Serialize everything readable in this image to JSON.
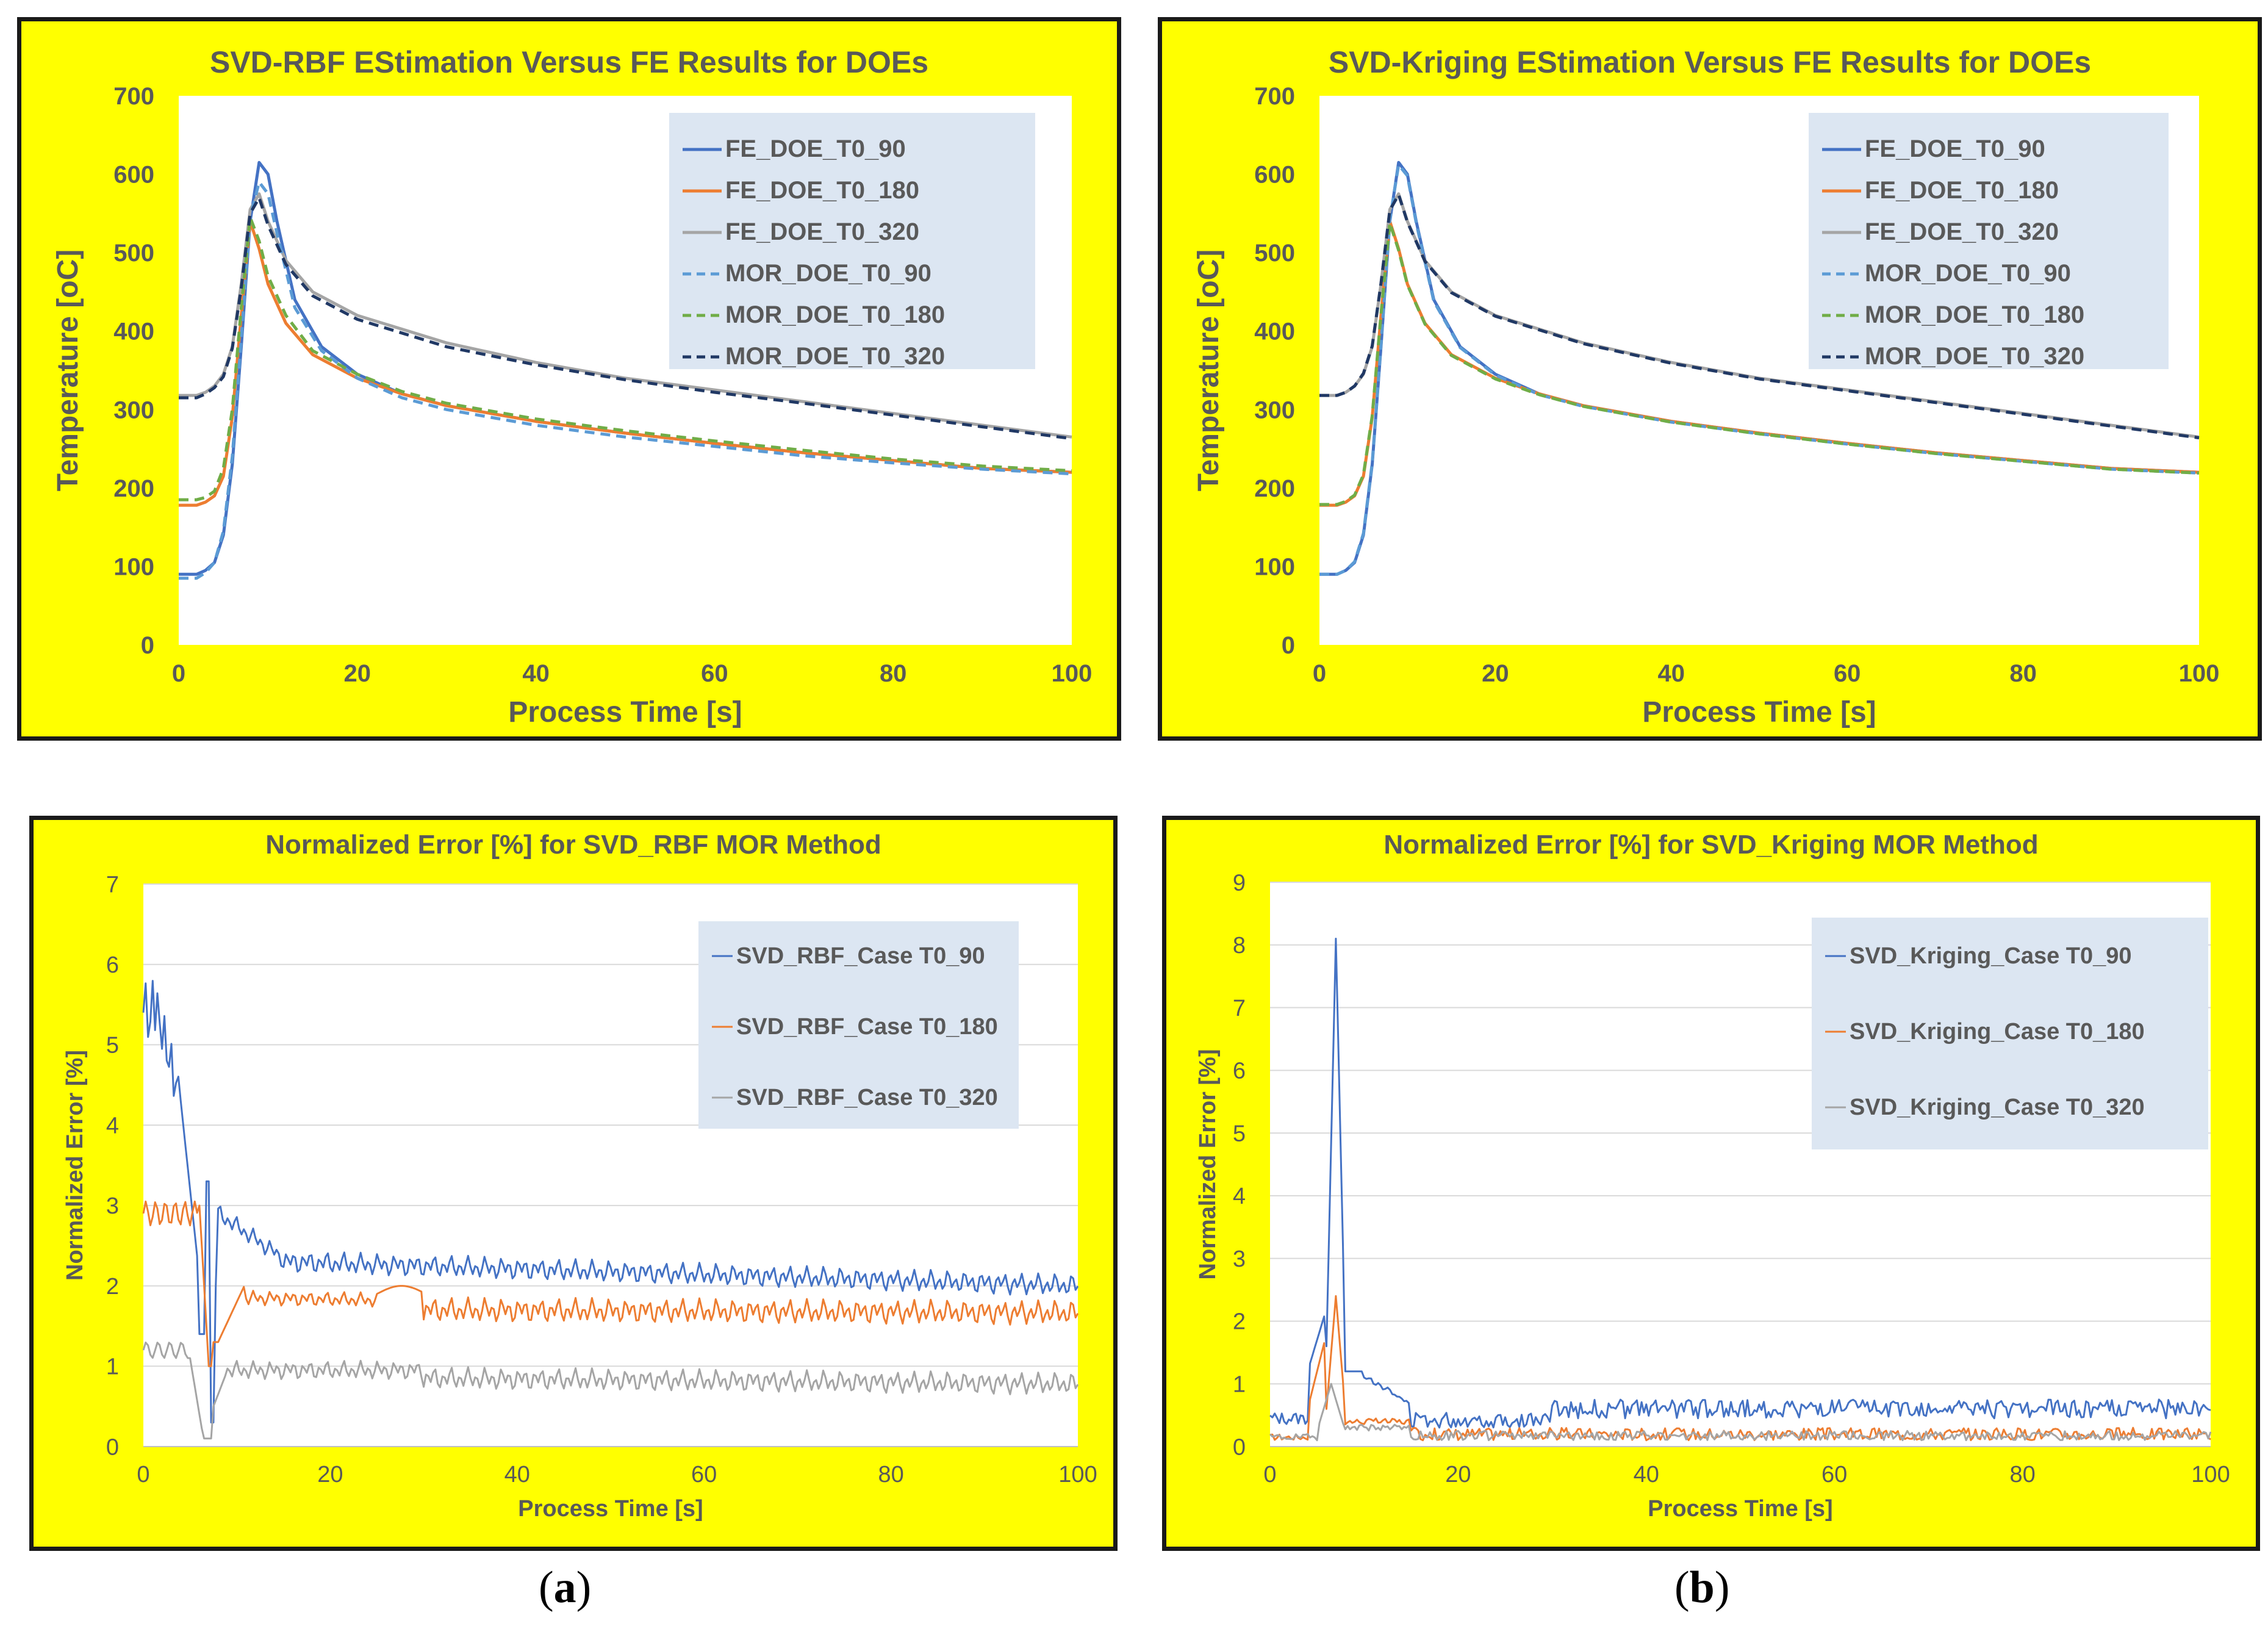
{
  "captions": {
    "a": "a",
    "b": "b"
  },
  "chart_data": [
    {
      "id": "tl",
      "type": "line",
      "title": "SVD-RBF EStimation Versus FE Results for DOEs",
      "xlabel": "Process Time [s]",
      "ylabel": "Temperature [oC]",
      "xlim": [
        0,
        100
      ],
      "ylim": [
        0,
        700
      ],
      "xticks": [
        0,
        20,
        40,
        60,
        80,
        100
      ],
      "yticks": [
        0,
        100,
        200,
        300,
        400,
        500,
        600,
        700
      ],
      "grid": false,
      "legend_position": "top-right",
      "series": [
        {
          "name": "FE_DOE_T0_90",
          "color": "#4472c4",
          "style": "solid",
          "x": [
            0,
            2,
            3,
            4,
            5,
            6,
            7,
            8,
            9,
            10,
            11,
            13,
            16,
            20,
            25,
            30,
            40,
            50,
            60,
            70,
            80,
            90,
            100
          ],
          "y": [
            90,
            90,
            95,
            105,
            140,
            230,
            380,
            540,
            615,
            600,
            540,
            440,
            380,
            345,
            320,
            305,
            285,
            270,
            257,
            245,
            235,
            225,
            220
          ]
        },
        {
          "name": "FE_DOE_T0_180",
          "color": "#ed7d31",
          "style": "solid",
          "x": [
            0,
            2,
            3,
            4,
            5,
            6,
            7,
            8,
            9,
            10,
            12,
            15,
            20,
            25,
            30,
            40,
            50,
            60,
            70,
            80,
            90,
            100
          ],
          "y": [
            178,
            178,
            182,
            190,
            215,
            290,
            420,
            540,
            505,
            460,
            410,
            370,
            340,
            320,
            305,
            285,
            270,
            257,
            245,
            235,
            225,
            220
          ]
        },
        {
          "name": "FE_DOE_T0_320",
          "color": "#a5a5a5",
          "style": "solid",
          "x": [
            0,
            2,
            3,
            4,
            5,
            6,
            7,
            8,
            9,
            10,
            12,
            15,
            20,
            30,
            40,
            50,
            60,
            70,
            80,
            90,
            100
          ],
          "y": [
            318,
            318,
            322,
            330,
            345,
            380,
            460,
            555,
            575,
            540,
            490,
            450,
            420,
            385,
            360,
            340,
            325,
            310,
            295,
            280,
            265
          ]
        },
        {
          "name": "MOR_DOE_T0_90",
          "color": "#5b9bd5",
          "style": "dash",
          "x": [
            0,
            2,
            3,
            4,
            5,
            6,
            7,
            8,
            9,
            10,
            11,
            13,
            16,
            20,
            25,
            30,
            40,
            50,
            60,
            70,
            80,
            90,
            100
          ],
          "y": [
            85,
            85,
            92,
            105,
            145,
            240,
            390,
            545,
            590,
            575,
            525,
            430,
            375,
            340,
            315,
            300,
            280,
            265,
            253,
            241,
            232,
            224,
            218
          ]
        },
        {
          "name": "MOR_DOE_T0_180",
          "color": "#70ad47",
          "style": "dash",
          "x": [
            0,
            2,
            3,
            4,
            5,
            6,
            7,
            8,
            9,
            10,
            12,
            15,
            20,
            25,
            30,
            40,
            50,
            60,
            70,
            80,
            90,
            100
          ],
          "y": [
            185,
            185,
            188,
            196,
            225,
            300,
            430,
            545,
            515,
            470,
            420,
            375,
            345,
            323,
            308,
            288,
            273,
            260,
            248,
            237,
            228,
            222
          ]
        },
        {
          "name": "MOR_DOE_T0_320",
          "color": "#203864",
          "style": "dash",
          "x": [
            0,
            2,
            3,
            4,
            5,
            6,
            7,
            8,
            9,
            10,
            12,
            15,
            20,
            30,
            40,
            50,
            60,
            70,
            80,
            90,
            100
          ],
          "y": [
            315,
            315,
            320,
            328,
            342,
            378,
            455,
            550,
            570,
            535,
            485,
            445,
            415,
            380,
            357,
            338,
            322,
            308,
            293,
            278,
            263
          ]
        }
      ]
    },
    {
      "id": "tr",
      "type": "line",
      "title": "SVD-Kriging EStimation Versus FE Results for DOEs",
      "xlabel": "Process Time [s]",
      "ylabel": "Temperature [oC]",
      "xlim": [
        0,
        100
      ],
      "ylim": [
        0,
        700
      ],
      "xticks": [
        0,
        20,
        40,
        60,
        80,
        100
      ],
      "yticks": [
        0,
        100,
        200,
        300,
        400,
        500,
        600,
        700
      ],
      "grid": false,
      "legend_position": "top-right",
      "series": [
        {
          "name": "FE_DOE_T0_90",
          "color": "#4472c4",
          "style": "solid",
          "x": [
            0,
            2,
            3,
            4,
            5,
            6,
            7,
            8,
            9,
            10,
            11,
            13,
            16,
            20,
            25,
            30,
            40,
            50,
            60,
            70,
            80,
            90,
            100
          ],
          "y": [
            90,
            90,
            95,
            105,
            140,
            230,
            380,
            540,
            615,
            600,
            540,
            440,
            380,
            345,
            320,
            305,
            285,
            270,
            257,
            245,
            235,
            225,
            220
          ]
        },
        {
          "name": "FE_DOE_T0_180",
          "color": "#ed7d31",
          "style": "solid",
          "x": [
            0,
            2,
            3,
            4,
            5,
            6,
            7,
            8,
            9,
            10,
            12,
            15,
            20,
            25,
            30,
            40,
            50,
            60,
            70,
            80,
            90,
            100
          ],
          "y": [
            178,
            178,
            182,
            190,
            215,
            290,
            420,
            540,
            505,
            460,
            410,
            370,
            340,
            320,
            305,
            285,
            270,
            257,
            245,
            235,
            225,
            220
          ]
        },
        {
          "name": "FE_DOE_T0_320",
          "color": "#a5a5a5",
          "style": "solid",
          "x": [
            0,
            2,
            3,
            4,
            5,
            6,
            7,
            8,
            9,
            10,
            12,
            15,
            20,
            30,
            40,
            50,
            60,
            70,
            80,
            90,
            100
          ],
          "y": [
            318,
            318,
            322,
            330,
            345,
            380,
            460,
            555,
            575,
            540,
            490,
            450,
            420,
            385,
            360,
            340,
            325,
            310,
            295,
            280,
            265
          ]
        },
        {
          "name": "MOR_DOE_T0_90",
          "color": "#5b9bd5",
          "style": "dash",
          "x": [
            0,
            2,
            3,
            4,
            5,
            6,
            7,
            8,
            9,
            10,
            11,
            13,
            16,
            20,
            25,
            30,
            40,
            50,
            60,
            70,
            80,
            90,
            100
          ],
          "y": [
            90,
            90,
            95,
            106,
            142,
            232,
            382,
            542,
            612,
            598,
            538,
            438,
            379,
            344,
            319,
            304,
            284,
            269,
            256,
            244,
            234,
            224,
            219
          ]
        },
        {
          "name": "MOR_DOE_T0_180",
          "color": "#70ad47",
          "style": "dash",
          "x": [
            0,
            2,
            3,
            4,
            5,
            6,
            7,
            8,
            9,
            10,
            12,
            15,
            20,
            25,
            30,
            40,
            50,
            60,
            70,
            80,
            90,
            100
          ],
          "y": [
            179,
            179,
            183,
            191,
            217,
            292,
            422,
            538,
            503,
            459,
            409,
            369,
            339,
            319,
            304,
            284,
            269,
            256,
            244,
            234,
            224,
            219
          ]
        },
        {
          "name": "MOR_DOE_T0_320",
          "color": "#203864",
          "style": "dash",
          "x": [
            0,
            2,
            3,
            4,
            5,
            6,
            7,
            8,
            9,
            10,
            12,
            15,
            20,
            30,
            40,
            50,
            60,
            70,
            80,
            90,
            100
          ],
          "y": [
            318,
            318,
            322,
            330,
            346,
            381,
            461,
            554,
            574,
            539,
            489,
            449,
            419,
            384,
            359,
            339,
            324,
            309,
            294,
            279,
            264
          ]
        }
      ]
    },
    {
      "id": "bl",
      "type": "line",
      "title": "Normalized Error [%] for SVD_RBF MOR Method",
      "xlabel": "Process Time [s]",
      "ylabel": "Normalized Error [%]",
      "xlim": [
        0,
        100
      ],
      "ylim": [
        0,
        7
      ],
      "xticks": [
        0,
        20,
        40,
        60,
        80,
        100
      ],
      "yticks": [
        0,
        1,
        2,
        3,
        4,
        5,
        6,
        7
      ],
      "grid": true,
      "legend_position": "top-right",
      "series": [
        {
          "name": "SVD_RBF_Case T0_90",
          "color": "#4472c4",
          "style": "solid",
          "base": "rbf90"
        },
        {
          "name": "SVD_RBF_Case T0_180",
          "color": "#ed7d31",
          "style": "solid",
          "base": "rbf180"
        },
        {
          "name": "SVD_RBF_Case T0_320",
          "color": "#a5a5a5",
          "style": "solid",
          "base": "rbf320"
        }
      ]
    },
    {
      "id": "br",
      "type": "line",
      "title": "Normalized Error [%] for SVD_Kriging MOR Method",
      "xlabel": "Process Time [s]",
      "ylabel": "Normalized Error [%]",
      "xlim": [
        0,
        100
      ],
      "ylim": [
        0,
        9
      ],
      "xticks": [
        0,
        20,
        40,
        60,
        80,
        100
      ],
      "yticks": [
        0,
        1,
        2,
        3,
        4,
        5,
        6,
        7,
        8,
        9
      ],
      "grid": true,
      "legend_position": "top-right",
      "series": [
        {
          "name": "SVD_Kriging_Case T0_90",
          "color": "#4472c4",
          "style": "solid",
          "base": "kr90"
        },
        {
          "name": "SVD_Kriging_Case T0_180",
          "color": "#ed7d31",
          "style": "solid",
          "base": "kr180"
        },
        {
          "name": "SVD_Kriging_Case T0_320",
          "color": "#a5a5a5",
          "style": "solid",
          "base": "kr320"
        }
      ]
    }
  ]
}
